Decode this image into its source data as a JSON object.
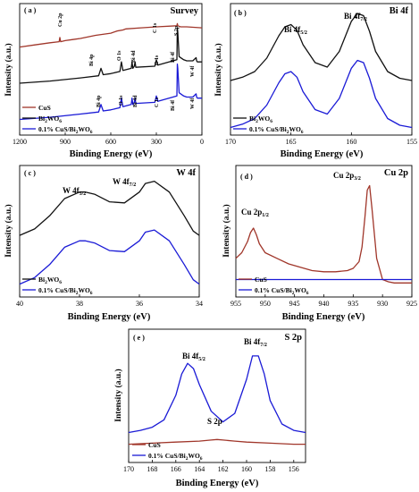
{
  "chart_data": [
    {
      "type": "line",
      "panel_label": "( a )",
      "title": "Survey",
      "xlabel": "Binding Energy (eV)",
      "ylabel": "Intensity (a.u.)",
      "xlim": [
        1200,
        0
      ],
      "x_ticks": [
        "1200",
        "900",
        "600",
        "300",
        "0"
      ],
      "series": [
        {
          "name": "CuS",
          "color": "#a0362a",
          "offset": 0.76,
          "x": [
            1200,
            1100,
            1000,
            940,
            935,
            930,
            900,
            850,
            800,
            700,
            600,
            560,
            520,
            500,
            400,
            300,
            165,
            162,
            159,
            140,
            100,
            0
          ],
          "y": [
            0,
            0.02,
            0.04,
            0.05,
            0.09,
            0.05,
            0.06,
            0.07,
            0.08,
            0.11,
            0.13,
            0.15,
            0.16,
            0.17,
            0.18,
            0.19,
            0.2,
            0.22,
            0.2,
            0.19,
            0.19,
            0.18
          ]
        },
        {
          "name": "Bi2WO6",
          "color": "#111111",
          "offset": 0.42,
          "x": [
            1200,
            1000,
            800,
            680,
            665,
            650,
            600,
            540,
            530,
            520,
            465,
            460,
            455,
            445,
            440,
            435,
            310,
            300,
            290,
            165,
            162,
            159,
            150,
            120,
            100,
            60,
            38,
            35,
            30,
            20,
            0
          ],
          "y": [
            0,
            0.02,
            0.05,
            0.07,
            0.14,
            0.08,
            0.09,
            0.11,
            0.2,
            0.12,
            0.14,
            0.2,
            0.14,
            0.16,
            0.2,
            0.15,
            0.16,
            0.22,
            0.17,
            0.22,
            0.52,
            0.48,
            0.25,
            0.22,
            0.21,
            0.21,
            0.24,
            0.21,
            0.2,
            0.2,
            0.2
          ]
        },
        {
          "name": "0.1% CuS/Bi2WO6",
          "color": "#1a1ad6",
          "offset": 0.08,
          "x": [
            1200,
            1000,
            800,
            680,
            665,
            650,
            600,
            540,
            530,
            520,
            465,
            460,
            455,
            445,
            440,
            435,
            310,
            300,
            290,
            165,
            162,
            159,
            150,
            120,
            100,
            60,
            38,
            35,
            30,
            20,
            0
          ],
          "y": [
            0,
            0.02,
            0.05,
            0.07,
            0.14,
            0.08,
            0.09,
            0.11,
            0.2,
            0.12,
            0.14,
            0.2,
            0.14,
            0.16,
            0.2,
            0.15,
            0.16,
            0.22,
            0.17,
            0.22,
            0.52,
            0.48,
            0.25,
            0.22,
            0.21,
            0.21,
            0.24,
            0.21,
            0.2,
            0.2,
            0.2
          ]
        }
      ],
      "annotations": [
        "Cu 2p",
        "C 1s",
        "S 2p",
        "Bi 4p",
        "O 1s",
        "Bi 4d",
        "C 1s",
        "Bi 4f",
        "W 4f",
        "Bi 4p",
        "O 1s",
        "Bi 4d",
        "C 1s",
        "Bi 4f",
        "W 4f"
      ],
      "legend": [
        "CuS",
        "Bi2WO6",
        "0.1% CuS/Bi2WO6"
      ],
      "legend_position": "bottom-left"
    },
    {
      "type": "line",
      "panel_label": "( b )",
      "title": "Bi 4f",
      "xlabel": "Binding Energy (eV)",
      "ylabel": "Intensity (a.u.)",
      "xlim": [
        170,
        155
      ],
      "x_ticks": [
        "170",
        "165",
        "160",
        "155"
      ],
      "peaks": [
        "Bi 4f5/2",
        "Bi 4f7/2"
      ],
      "series": [
        {
          "name": "Bi2WO6",
          "color": "#111111",
          "offset": 0.42,
          "x": [
            170,
            169,
            168,
            167,
            166,
            165.5,
            165,
            164.5,
            164,
            163,
            162,
            161,
            160,
            159.5,
            159,
            158.5,
            158,
            157,
            156,
            155
          ],
          "y": [
            0.02,
            0.05,
            0.1,
            0.22,
            0.42,
            0.5,
            0.52,
            0.47,
            0.34,
            0.18,
            0.14,
            0.28,
            0.55,
            0.62,
            0.6,
            0.46,
            0.28,
            0.1,
            0.04,
            0.02
          ]
        },
        {
          "name": "0.1% CuS/Bi2WO6",
          "color": "#1a1ad6",
          "offset": 0.0,
          "x": [
            170,
            169,
            168,
            167,
            166,
            165.5,
            165,
            164.5,
            164,
            163,
            162,
            161,
            160,
            159.5,
            159,
            158.5,
            158,
            157,
            156,
            155
          ],
          "y": [
            0.02,
            0.05,
            0.1,
            0.22,
            0.42,
            0.5,
            0.52,
            0.47,
            0.34,
            0.18,
            0.14,
            0.28,
            0.55,
            0.62,
            0.6,
            0.46,
            0.28,
            0.1,
            0.04,
            0.02
          ]
        }
      ],
      "legend": [
        "Bi2WO6",
        "0.1% CuS/Bi2WO6"
      ],
      "legend_position": "bottom-left"
    },
    {
      "type": "line",
      "panel_label": "( c )",
      "title": "W 4f",
      "xlabel": "Binding Energy (eV)",
      "ylabel": "Intensity (a.u.)",
      "xlim": [
        40,
        34
      ],
      "x_ticks": [
        "40",
        "38",
        "36",
        "34"
      ],
      "peaks": [
        "W 4f5/2",
        "W 4f7/2"
      ],
      "series": [
        {
          "name": "Bi2WO6",
          "color": "#111111",
          "offset": 0.45,
          "x": [
            40,
            39.5,
            39,
            38.5,
            38,
            37.8,
            37.5,
            37,
            36.5,
            36,
            35.8,
            35.5,
            35,
            34.5,
            34.2,
            34
          ],
          "y": [
            0.02,
            0.08,
            0.2,
            0.36,
            0.42,
            0.42,
            0.4,
            0.33,
            0.32,
            0.42,
            0.5,
            0.52,
            0.42,
            0.2,
            0.06,
            0.02
          ]
        },
        {
          "name": "0.1% CuS/Bi2WO6",
          "color": "#1a1ad6",
          "offset": 0.0,
          "x": [
            40,
            39.5,
            39,
            38.5,
            38,
            37.8,
            37.5,
            37,
            36.5,
            36,
            35.8,
            35.5,
            35,
            34.5,
            34.2,
            34
          ],
          "y": [
            0.02,
            0.08,
            0.2,
            0.36,
            0.42,
            0.42,
            0.4,
            0.33,
            0.32,
            0.42,
            0.5,
            0.52,
            0.42,
            0.2,
            0.06,
            0.02
          ]
        }
      ],
      "legend": [
        "Bi2WO6",
        "0.1% CuS/Bi2WO6"
      ],
      "legend_position": "bottom-left"
    },
    {
      "type": "line",
      "panel_label": "( d )",
      "title": "Cu 2p",
      "xlabel": "Binding Energy (eV)",
      "ylabel": "Intensity (a.u.)",
      "xlim": [
        955,
        925
      ],
      "x_ticks": [
        "955",
        "950",
        "945",
        "940",
        "935",
        "930",
        "925"
      ],
      "peaks": [
        "Cu 2p1/2",
        "Cu 2p3/2"
      ],
      "series": [
        {
          "name": "CuS",
          "color": "#a0362a",
          "offset": 0.0,
          "x": [
            955,
            954,
            953,
            952.5,
            952,
            951.5,
            951,
            950,
            948,
            946,
            944,
            942,
            940,
            938,
            936,
            935,
            934,
            933.5,
            933,
            932.6,
            932.2,
            931.8,
            931,
            930,
            929,
            928,
            927,
            926,
            925
          ],
          "y": [
            0.25,
            0.3,
            0.4,
            0.48,
            0.52,
            0.46,
            0.38,
            0.3,
            0.25,
            0.2,
            0.17,
            0.14,
            0.13,
            0.13,
            0.14,
            0.16,
            0.22,
            0.35,
            0.62,
            0.86,
            0.9,
            0.7,
            0.25,
            0.06,
            0.04,
            0.03,
            0.03,
            0.03,
            0.03
          ]
        },
        {
          "name": "0.1% CuS/Bi2WO6",
          "color": "#1a1ad6",
          "offset": 0.0,
          "x": [
            955,
            950,
            945,
            940,
            935,
            930,
            925
          ],
          "y": [
            0.06,
            0.06,
            0.06,
            0.06,
            0.06,
            0.06,
            0.06
          ]
        }
      ],
      "legend": [
        "CuS",
        "0.1% CuS/Bi2WO6"
      ],
      "legend_position": "bottom-left"
    },
    {
      "type": "line",
      "panel_label": "( e )",
      "title": "S 2p",
      "xlabel": "Binding Energy (eV)",
      "ylabel": "Intensity (a.u.)",
      "xlim": [
        170,
        155
      ],
      "x_ticks": [
        "170",
        "168",
        "166",
        "164",
        "162",
        "160",
        "158",
        "156"
      ],
      "peaks": [
        "Bi 4f5/2",
        "Bi 4f7/2",
        "S 2p"
      ],
      "series": [
        {
          "name": "CuS",
          "color": "#a0362a",
          "offset": 0.0,
          "x": [
            170,
            168,
            166,
            164,
            163,
            162.5,
            162,
            161,
            160,
            158,
            156,
            155
          ],
          "y": [
            0.02,
            0.03,
            0.04,
            0.05,
            0.06,
            0.065,
            0.06,
            0.05,
            0.04,
            0.03,
            0.02,
            0.02
          ]
        },
        {
          "name": "0.1% CuS/Bi2WO6",
          "color": "#1a1ad6",
          "offset": 0.13,
          "x": [
            170,
            169,
            168,
            167,
            166,
            165.5,
            165,
            164.5,
            164,
            163,
            162,
            161,
            160,
            159.5,
            159,
            158.5,
            158,
            157,
            156,
            155
          ],
          "y": [
            0.0,
            0.02,
            0.05,
            0.12,
            0.35,
            0.55,
            0.65,
            0.6,
            0.45,
            0.2,
            0.1,
            0.18,
            0.5,
            0.72,
            0.72,
            0.55,
            0.3,
            0.08,
            0.02,
            0.0
          ]
        }
      ],
      "legend": [
        "CuS",
        "0.1% CuS/Bi2WO6"
      ],
      "legend_position": "bottom-left"
    }
  ]
}
